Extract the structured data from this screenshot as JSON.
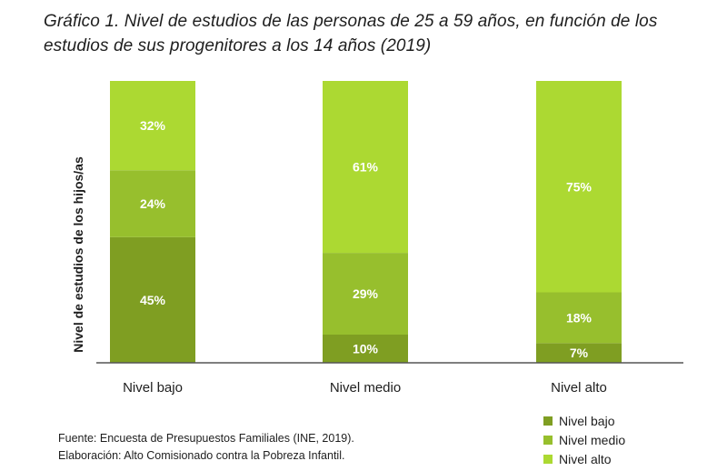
{
  "title_lines": [
    "Gráfico 1. Nivel de estudios de las personas de 25 a 59 años, en función de los",
    "estudios de sus progenitores a los 14 años (2019)"
  ],
  "footer": {
    "source": "Fuente: Encuesta de Presupuestos Familiales (INE, 2019).",
    "credit": "Elaboración: Alto Comisionado contra la Pobreza Infantil."
  },
  "legend": [
    {
      "label": "Nivel bajo",
      "color": "#7f9e22"
    },
    {
      "label": "Nivel medio",
      "color": "#97bf2d"
    },
    {
      "label": "Nivel alto",
      "color": "#acd932"
    }
  ],
  "chart_data": {
    "type": "bar",
    "stacked": true,
    "ylabel": "Nivel de estudios de los hijos/as",
    "xlabel": "",
    "categories": [
      "Nivel bajo",
      "Nivel medio",
      "Nivel alto"
    ],
    "series": [
      {
        "name": "Nivel bajo",
        "color": "#7f9e22",
        "values": [
          45,
          10,
          7
        ],
        "labels": [
          "45%",
          "10%",
          "7%"
        ]
      },
      {
        "name": "Nivel medio",
        "color": "#97bf2d",
        "values": [
          24,
          29,
          18
        ],
        "labels": [
          "24%",
          "29%",
          "18%"
        ]
      },
      {
        "name": "Nivel alto",
        "color": "#acd932",
        "values": [
          32,
          61,
          75
        ],
        "labels": [
          "32%",
          "61%",
          "75%"
        ]
      }
    ],
    "ylim": [
      0,
      100
    ],
    "grid": false,
    "legend_position": "bottom-right"
  }
}
